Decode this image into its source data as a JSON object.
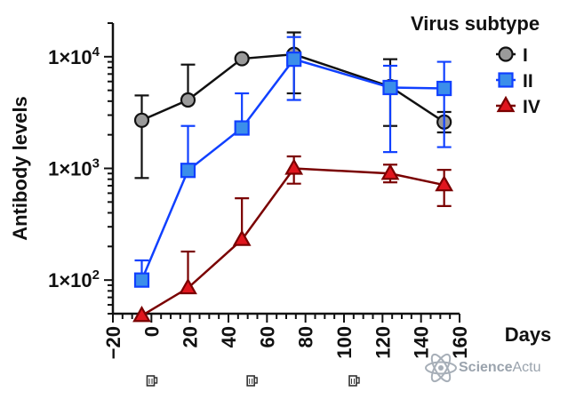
{
  "chart_data": {
    "type": "line",
    "x_label": "Days",
    "y_label": "Antibody levels",
    "y_scale": "log",
    "xlim": [
      -20,
      160
    ],
    "ylim": [
      50,
      20000
    ],
    "x_ticks": [
      -20,
      0,
      20,
      40,
      60,
      80,
      100,
      120,
      140,
      160
    ],
    "y_ticks": [
      {
        "value": 100,
        "base": "1×10",
        "exp": "2"
      },
      {
        "value": 1000,
        "base": "1×10",
        "exp": "3"
      },
      {
        "value": 10000,
        "base": "1×10",
        "exp": "4"
      }
    ],
    "legend": {
      "title": "Virus subtype",
      "position": "top-right"
    },
    "series": [
      {
        "name": "I",
        "color": "#111111",
        "fill": "#9a9a9a",
        "marker": "circle",
        "points": [
          {
            "x": -5,
            "y": 2700,
            "err_low": 820,
            "err_high": 4500
          },
          {
            "x": 19,
            "y": 4100,
            "err_high": 8500
          },
          {
            "x": 47,
            "y": 9600
          },
          {
            "x": 74,
            "y": 10500,
            "err_low": 4700,
            "err_high": 16500
          },
          {
            "x": 124,
            "y": 5400,
            "err_low": 2400,
            "err_high": 9500
          },
          {
            "x": 152,
            "y": 2600,
            "err_low": 2100,
            "err_high": 3200
          }
        ]
      },
      {
        "name": "II",
        "color": "#1040ff",
        "fill": "#3b8eea",
        "marker": "square",
        "points": [
          {
            "x": -5,
            "y": 100,
            "err_high": 150
          },
          {
            "x": 19,
            "y": 960,
            "err_high": 2400
          },
          {
            "x": 47,
            "y": 2300,
            "err_high": 4700
          },
          {
            "x": 74,
            "y": 9500,
            "err_low": 4100,
            "err_high": 15000
          },
          {
            "x": 124,
            "y": 5300,
            "err_low": 1400,
            "err_high": 8300
          },
          {
            "x": 152,
            "y": 5200,
            "err_low": 1550,
            "err_high": 9000
          }
        ]
      },
      {
        "name": "IV",
        "color": "#7a0000",
        "fill": "#e0161e",
        "marker": "triangle",
        "points": [
          {
            "x": -5,
            "y": 48
          },
          {
            "x": 19,
            "y": 85,
            "err_high": 180
          },
          {
            "x": 47,
            "y": 230,
            "err_high": 540
          },
          {
            "x": 74,
            "y": 1000,
            "err_low": 730,
            "err_high": 1280
          },
          {
            "x": 124,
            "y": 900,
            "err_low": 750,
            "err_high": 1080
          },
          {
            "x": 152,
            "y": 710,
            "err_low": 460,
            "err_high": 970
          }
        ]
      }
    ],
    "vaccination_markers_x": [
      -5,
      47,
      100
    ]
  },
  "watermark": {
    "brand_strong": "Science",
    "brand_light": "Actu"
  }
}
